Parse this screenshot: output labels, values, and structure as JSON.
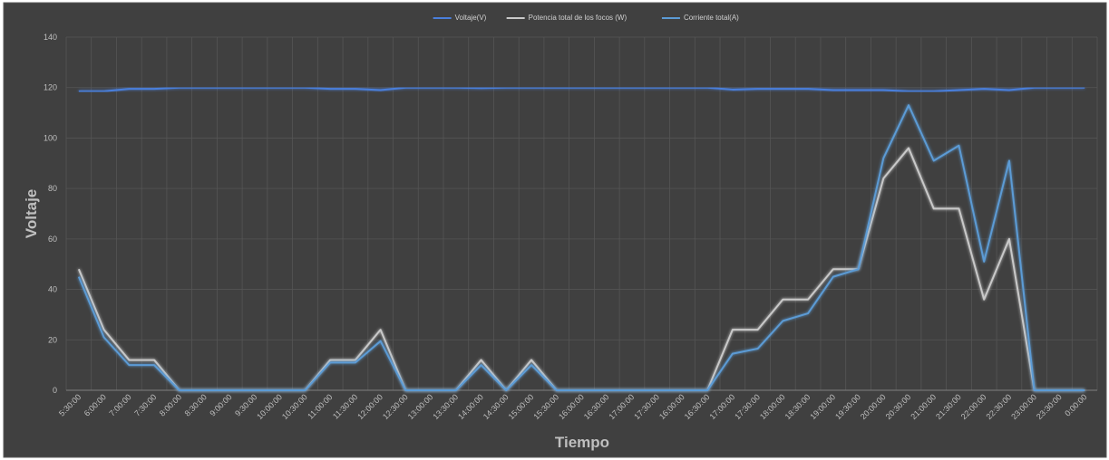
{
  "chart_data": {
    "type": "line",
    "x_label": "Tiempo",
    "y_label": "Voltaje",
    "categories": [
      "5:30:00",
      "6:00:00",
      "7:00:00",
      "7:30:00",
      "8:00:00",
      "8:30:00",
      "9:00:00",
      "9:30:00",
      "10:00:00",
      "10:30:00",
      "11:00:00",
      "11:30:00",
      "12:00:00",
      "12:30:00",
      "13:00:00",
      "13:30:00",
      "14:00:00",
      "14:30:00",
      "15:00:00",
      "15:30:00",
      "16:00:00",
      "16:30:00",
      "17:00:00",
      "17:30:00",
      "16:00:00",
      "16:30:00",
      "17:00:00",
      "17:30:00",
      "18:00:00",
      "18:30:00",
      "19:00:00",
      "19:30:00",
      "20:00:00",
      "20:30:00",
      "21:00:00",
      "21:30:00",
      "22:00:00",
      "22:30:00",
      "23:00:00",
      "23:30:00",
      "0:00:00"
    ],
    "series": [
      {
        "name": "Voltaje(V)",
        "color": "#4a7fdc",
        "values": [
          118.5,
          118.5,
          119.5,
          119.5,
          120,
          120,
          120,
          120,
          120,
          120,
          119.5,
          119.5,
          119,
          120,
          120,
          120,
          119.8,
          120,
          120,
          120,
          120,
          120,
          120,
          120,
          120,
          120,
          119.2,
          119.5,
          119.5,
          119.5,
          119,
          119,
          119,
          118.5,
          118.5,
          119,
          119.5,
          119,
          120,
          120,
          120
        ]
      },
      {
        "name": "Potencia total de los focos (W)",
        "color": "#c9c9c9",
        "values": [
          48,
          24,
          12,
          12,
          0,
          0,
          0,
          0,
          0,
          0,
          12,
          12,
          24,
          0,
          0,
          0,
          12,
          0,
          12,
          0,
          0,
          0,
          0,
          0,
          0,
          0,
          24,
          24,
          36,
          36,
          48,
          48,
          84,
          96,
          72,
          72,
          36,
          60,
          0,
          0,
          0
        ]
      },
      {
        "name": "Corriente total(A)",
        "color": "#5b9bd5",
        "values": [
          45,
          21,
          10,
          10,
          0,
          0,
          0,
          0,
          0,
          0,
          11,
          11,
          19.5,
          0,
          0,
          0,
          10,
          0,
          10,
          0,
          0,
          0,
          0,
          0,
          0,
          0,
          14.5,
          16.5,
          27.5,
          30.5,
          45,
          48,
          92,
          113,
          91,
          97,
          51,
          91,
          0,
          0,
          0
        ]
      }
    ],
    "ylim": [
      0,
      140
    ],
    "yticks": [
      0,
      20,
      40,
      60,
      80,
      100,
      120,
      140
    ],
    "grid": true,
    "legend": "top"
  }
}
